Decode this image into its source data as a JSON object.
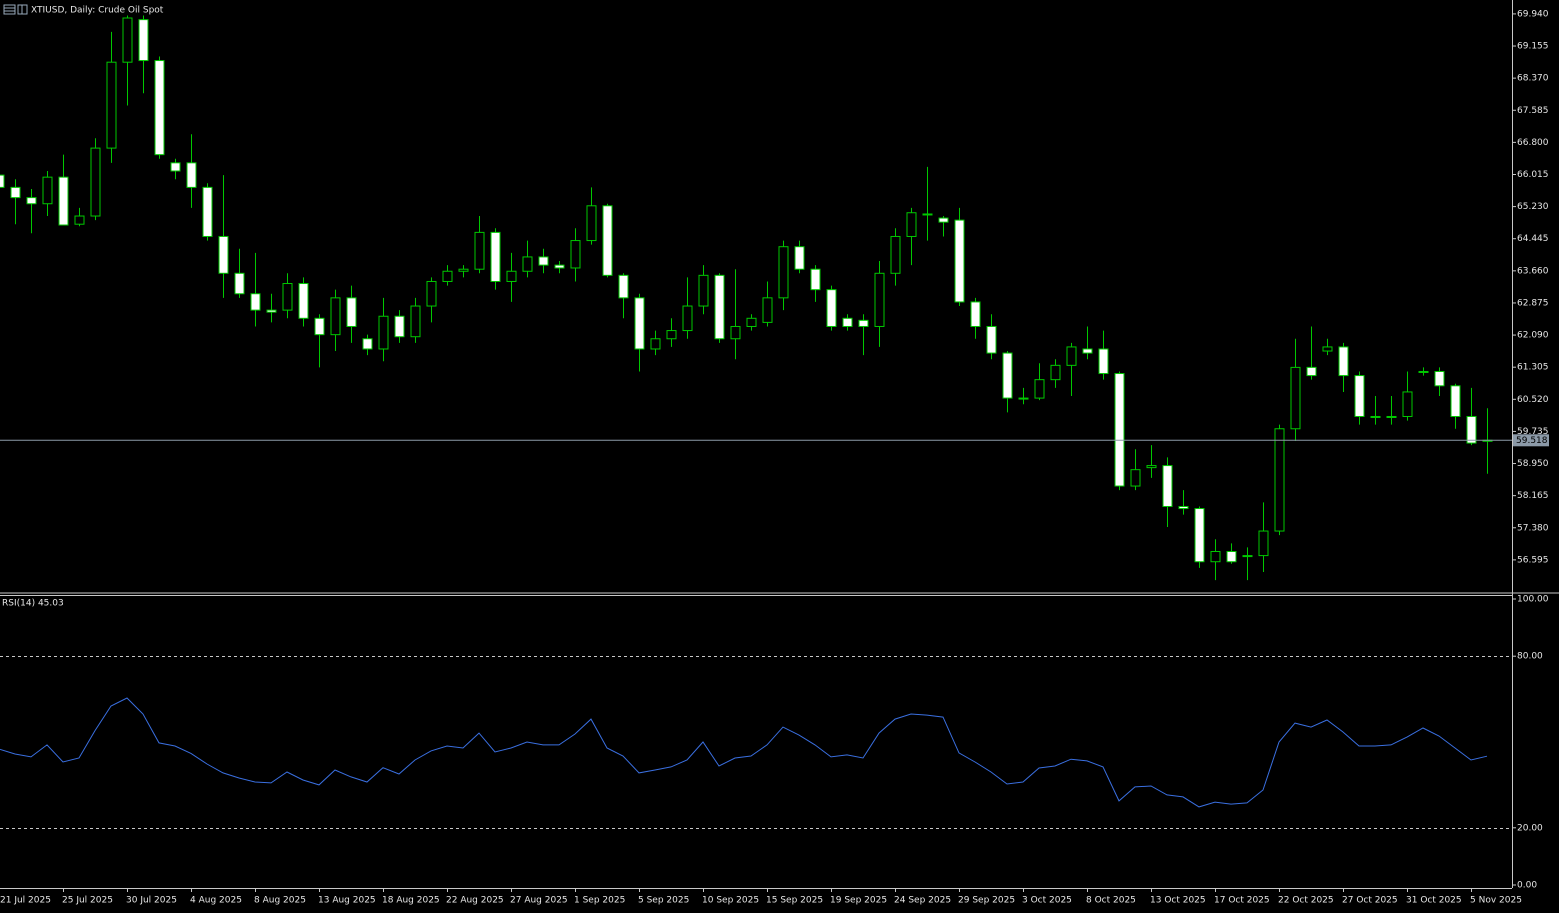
{
  "chart_data": [
    {
      "type": "candlestick",
      "title": "XTIUSD, Daily: Crude Oil Spot",
      "categories": [
        "21 Jul 2025",
        null,
        null,
        null,
        "25 Jul 2025",
        null,
        null,
        null,
        "30 Jul 2025",
        null,
        null,
        null,
        "4 Aug 2025",
        null,
        null,
        null,
        "8 Aug 2025",
        null,
        null,
        null,
        "13 Aug 2025",
        null,
        null,
        null,
        "18 Aug 2025",
        null,
        null,
        null,
        "22 Aug 2025",
        null,
        null,
        null,
        "27 Aug 2025",
        null,
        null,
        null,
        "1 Sep 2025",
        null,
        null,
        null,
        "5 Sep 2025",
        null,
        null,
        null,
        "10 Sep 2025",
        null,
        null,
        null,
        "15 Sep 2025",
        null,
        null,
        null,
        "19 Sep 2025",
        null,
        null,
        null,
        "24 Sep 2025",
        null,
        null,
        null,
        "29 Sep 2025",
        null,
        null,
        null,
        "3 Oct 2025",
        null,
        null,
        null,
        "8 Oct 2025",
        null,
        null,
        null,
        "13 Oct 2025",
        null,
        null,
        null,
        "17 Oct 2025",
        null,
        null,
        null,
        "22 Oct 2025",
        null,
        null,
        null,
        "27 Oct 2025",
        null,
        null,
        null,
        "31 Oct 2025",
        null,
        null,
        null,
        "5 Nov 2025",
        null
      ],
      "open": [
        66.0,
        65.7,
        65.45,
        65.3,
        65.95,
        64.8,
        65.0,
        66.66,
        68.76,
        69.8,
        68.8,
        66.3,
        66.3,
        65.7,
        64.5,
        63.6,
        63.1,
        62.7,
        62.7,
        63.35,
        62.5,
        62.1,
        63.0,
        62.0,
        61.75,
        62.55,
        62.05,
        62.8,
        63.4,
        63.65,
        63.7,
        64.6,
        63.4,
        63.65,
        64.0,
        63.8,
        63.73,
        64.4,
        65.25,
        63.55,
        63.0,
        61.75,
        62.0,
        62.2,
        62.8,
        63.55,
        62.0,
        62.3,
        62.4,
        63.0,
        64.25,
        63.7,
        63.2,
        62.5,
        62.45,
        62.3,
        63.6,
        64.5,
        65.05,
        64.95,
        64.9,
        62.9,
        62.3,
        61.65,
        60.55,
        60.55,
        61.0,
        61.35,
        61.75,
        61.75,
        61.15,
        58.4,
        58.85,
        58.9,
        57.9,
        57.85,
        56.55,
        56.8,
        56.7,
        56.7,
        57.3,
        59.8,
        61.3,
        61.7,
        61.8,
        61.1,
        60.1,
        60.1,
        60.1,
        61.2,
        61.2,
        60.85,
        60.1,
        59.5
      ],
      "high": [
        66.1,
        65.9,
        65.66,
        66.1,
        66.5,
        65.2,
        66.9,
        69.5,
        69.9,
        69.9,
        68.9,
        66.4,
        67.0,
        65.8,
        66.0,
        64.2,
        64.1,
        63.1,
        63.6,
        63.5,
        62.6,
        63.2,
        63.3,
        62.1,
        63.0,
        62.7,
        63.0,
        63.5,
        63.8,
        63.8,
        65.0,
        64.7,
        64.1,
        64.4,
        64.2,
        63.9,
        64.7,
        65.7,
        65.3,
        63.6,
        63.1,
        62.2,
        62.5,
        63.5,
        63.8,
        63.6,
        63.7,
        62.6,
        63.4,
        64.4,
        64.4,
        63.8,
        63.3,
        62.6,
        62.6,
        63.9,
        64.7,
        65.2,
        66.2,
        65.0,
        65.2,
        63.0,
        62.6,
        61.7,
        60.8,
        61.4,
        61.5,
        61.9,
        62.3,
        62.2,
        61.2,
        59.3,
        59.4,
        59.1,
        58.3,
        57.9,
        57.1,
        57.0,
        56.9,
        58.0,
        59.9,
        62.0,
        62.3,
        62.0,
        61.9,
        61.2,
        60.6,
        60.6,
        61.2,
        61.3,
        61.3,
        60.9,
        60.8,
        60.3
      ],
      "low": [
        65.4,
        64.8,
        64.58,
        65.0,
        64.78,
        64.75,
        64.9,
        66.3,
        67.7,
        68.0,
        66.4,
        65.9,
        65.2,
        64.4,
        63.0,
        63.0,
        62.3,
        62.4,
        62.5,
        62.3,
        61.3,
        61.7,
        61.9,
        61.6,
        61.45,
        61.9,
        61.9,
        62.4,
        63.3,
        63.5,
        63.6,
        63.2,
        62.9,
        63.5,
        63.6,
        63.6,
        63.4,
        64.3,
        63.5,
        62.5,
        61.2,
        61.6,
        61.8,
        62.0,
        62.6,
        61.9,
        61.5,
        62.2,
        62.3,
        62.7,
        63.6,
        62.9,
        62.2,
        62.2,
        61.6,
        61.8,
        63.3,
        63.8,
        64.4,
        64.5,
        62.8,
        62.0,
        61.5,
        60.2,
        60.4,
        60.5,
        60.8,
        60.6,
        61.5,
        61.0,
        58.3,
        58.3,
        58.6,
        57.4,
        57.7,
        56.4,
        56.1,
        56.5,
        56.1,
        56.3,
        57.2,
        59.5,
        61.0,
        61.6,
        60.7,
        59.9,
        59.9,
        59.9,
        60.0,
        61.1,
        60.6,
        59.8,
        59.4,
        58.7
      ],
      "close": [
        65.7,
        65.45,
        65.3,
        65.95,
        64.78,
        65.0,
        66.66,
        68.76,
        69.84,
        68.8,
        66.5,
        66.1,
        65.7,
        64.5,
        63.6,
        63.1,
        62.7,
        62.65,
        63.35,
        62.5,
        62.1,
        63.0,
        62.3,
        61.75,
        62.55,
        62.05,
        62.8,
        63.4,
        63.65,
        63.7,
        64.6,
        63.4,
        63.65,
        64.0,
        63.8,
        63.73,
        64.4,
        65.25,
        63.55,
        63.0,
        61.75,
        62.0,
        62.2,
        62.8,
        63.55,
        62.0,
        62.3,
        62.5,
        63.0,
        64.25,
        63.7,
        63.2,
        62.3,
        62.3,
        62.3,
        63.6,
        64.5,
        65.08,
        65.05,
        64.85,
        62.9,
        62.3,
        61.65,
        60.55,
        60.55,
        61.0,
        61.35,
        61.8,
        61.65,
        61.15,
        58.4,
        58.8,
        58.9,
        57.9,
        57.85,
        56.55,
        56.8,
        56.55,
        56.7,
        57.3,
        59.8,
        61.3,
        61.1,
        61.8,
        61.1,
        60.1,
        60.1,
        60.1,
        60.7,
        61.2,
        60.85,
        60.1,
        59.45,
        59.518
      ],
      "up_color": "#00c800",
      "down_color": "#ffffff",
      "current_price": 59.518,
      "ylim": [
        55.81,
        70.28
      ],
      "yticks": [
        {
          "value": 69.94,
          "label": "69.940"
        },
        {
          "value": 69.155,
          "label": "69.155"
        },
        {
          "value": 68.37,
          "label": "68.370"
        },
        {
          "value": 67.585,
          "label": "67.585"
        },
        {
          "value": 66.8,
          "label": "66.800"
        },
        {
          "value": 66.015,
          "label": "66.015"
        },
        {
          "value": 65.23,
          "label": "65.230"
        },
        {
          "value": 64.445,
          "label": "64.445"
        },
        {
          "value": 63.66,
          "label": "63.660"
        },
        {
          "value": 62.875,
          "label": "62.875"
        },
        {
          "value": 62.09,
          "label": "62.090"
        },
        {
          "value": 61.305,
          "label": "61.305"
        },
        {
          "value": 60.52,
          "label": "60.520"
        },
        {
          "value": 59.735,
          "label": "59.735"
        },
        {
          "value": 58.95,
          "label": "58.950"
        },
        {
          "value": 58.165,
          "label": "58.165"
        },
        {
          "value": 57.38,
          "label": "57.380"
        },
        {
          "value": 56.595,
          "label": "56.595"
        }
      ]
    },
    {
      "type": "line",
      "label": "RSI(14) 45.03",
      "color": "#3a6fe0",
      "values": [
        47.5,
        45.8,
        44.8,
        49,
        43,
        44.4,
        54,
        62.6,
        65.4,
        59.8,
        49.7,
        48.6,
        46,
        42.3,
        39.2,
        37.4,
        36,
        35.7,
        39.5,
        36.7,
        35,
        40.2,
        37.8,
        36,
        41,
        38.8,
        43.7,
        46.9,
        48.6,
        47.9,
        53.1,
        46.5,
        47.9,
        50,
        49,
        49,
        52.8,
        58,
        47.9,
        45.1,
        39.2,
        40.2,
        41.3,
        43.7,
        50,
        41.6,
        44.4,
        45.1,
        49,
        55.2,
        52.4,
        49,
        44.8,
        45.5,
        44.4,
        53.1,
        58,
        59.8,
        59.4,
        58.7,
        46.2,
        43,
        39.5,
        35.3,
        36,
        40.9,
        41.6,
        44,
        43.4,
        41.3,
        29.4,
        34.3,
        34.6,
        31.5,
        30.8,
        27.3,
        29,
        28.3,
        28.7,
        33.2,
        50,
        56.6,
        55.2,
        57.7,
        53.5,
        48.6,
        48.6,
        49,
        51.7,
        54.9,
        52.1,
        47.9,
        43.7,
        45.03
      ],
      "ylim": [
        0,
        100
      ],
      "yticks": [
        {
          "value": 100,
          "label": "100.00"
        },
        {
          "value": 80,
          "label": "80.00"
        },
        {
          "value": 20,
          "label": "20.00"
        },
        {
          "value": 0,
          "label": "0.00"
        }
      ],
      "levels": [
        80,
        20
      ]
    }
  ]
}
